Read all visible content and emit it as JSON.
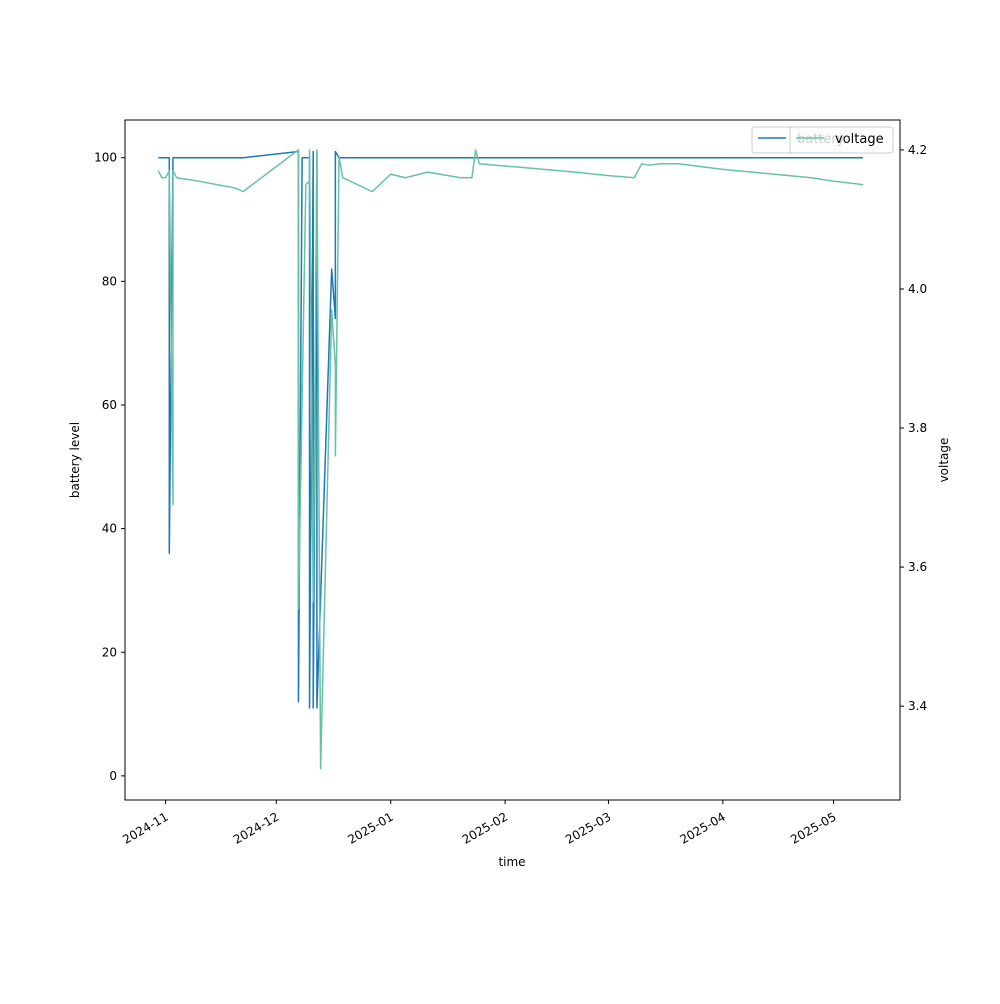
{
  "chart_data": {
    "type": "line",
    "xlabel": "time",
    "ylabel_left": "battery level",
    "ylabel_right": "voltage",
    "x_tick_labels": [
      "2024-11",
      "2024-12",
      "2025-01",
      "2025-02",
      "2025-03",
      "2025-04",
      "2025-05"
    ],
    "x_ticks": [
      "2024-11-01",
      "2024-12-01",
      "2025-01-01",
      "2025-02-01",
      "2025-03-01",
      "2025-04-01",
      "2025-05-01"
    ],
    "xlim": [
      "2024-10-21",
      "2025-05-19"
    ],
    "ylim_left": [
      -3.9,
      106.1
    ],
    "ylim_right": [
      3.265,
      4.243
    ],
    "y_ticks_left": [
      0,
      20,
      40,
      60,
      80,
      100
    ],
    "y_ticks_right": [
      3.4,
      3.6,
      3.8,
      4.0,
      4.2
    ],
    "grid": false,
    "legend_left": {
      "placement": "top-right",
      "entries": [
        "battery"
      ]
    },
    "legend_right": {
      "placement": "top-right",
      "entries": [
        "voltage"
      ]
    },
    "series": [
      {
        "name": "battery",
        "axis": "left",
        "color": "#1f77b4",
        "points": [
          [
            "2024-10-30",
            100
          ],
          [
            "2024-11-02",
            100
          ],
          [
            "2024-11-02",
            36
          ],
          [
            "2024-11-03",
            100
          ],
          [
            "2024-11-22",
            100
          ],
          [
            "2024-12-07",
            101
          ],
          [
            "2024-12-07",
            12
          ],
          [
            "2024-12-08",
            100
          ],
          [
            "2024-12-09",
            100
          ],
          [
            "2024-12-10",
            100
          ],
          [
            "2024-12-10",
            11
          ],
          [
            "2024-12-11",
            101
          ],
          [
            "2024-12-11",
            11
          ],
          [
            "2024-12-12",
            101
          ],
          [
            "2024-12-12",
            11
          ],
          [
            "2024-12-16",
            82
          ],
          [
            "2024-12-17",
            74
          ],
          [
            "2024-12-17",
            101
          ],
          [
            "2024-12-18",
            100
          ],
          [
            "2025-05-09",
            100
          ]
        ]
      },
      {
        "name": "voltage",
        "axis": "right",
        "color": "#66c2a5",
        "points": [
          [
            "2024-10-30",
            4.17
          ],
          [
            "2024-10-31",
            4.16
          ],
          [
            "2024-11-01",
            4.16
          ],
          [
            "2024-11-02",
            4.17
          ],
          [
            "2024-11-03",
            3.69
          ],
          [
            "2024-11-03",
            4.17
          ],
          [
            "2024-11-04",
            4.16
          ],
          [
            "2024-11-10",
            4.155
          ],
          [
            "2024-11-20",
            4.145
          ],
          [
            "2024-11-22",
            4.14
          ],
          [
            "2024-12-07",
            4.2
          ],
          [
            "2024-12-07",
            3.54
          ],
          [
            "2024-12-09",
            4.15
          ],
          [
            "2024-12-10",
            4.155
          ],
          [
            "2024-12-10",
            4.2
          ],
          [
            "2024-12-11",
            3.55
          ],
          [
            "2024-12-12",
            4.2
          ],
          [
            "2024-12-13",
            3.31
          ],
          [
            "2024-12-16",
            3.97
          ],
          [
            "2024-12-17",
            3.89
          ],
          [
            "2024-12-17",
            3.76
          ],
          [
            "2024-12-18",
            4.19
          ],
          [
            "2024-12-19",
            4.16
          ],
          [
            "2024-12-27",
            4.14
          ],
          [
            "2025-01-01",
            4.165
          ],
          [
            "2025-01-05",
            4.16
          ],
          [
            "2025-01-11",
            4.168
          ],
          [
            "2025-01-20",
            4.16
          ],
          [
            "2025-01-23",
            4.16
          ],
          [
            "2025-01-24",
            4.2
          ],
          [
            "2025-01-25",
            4.18
          ],
          [
            "2025-02-05",
            4.175
          ],
          [
            "2025-02-20",
            4.168
          ],
          [
            "2025-03-01",
            4.163
          ],
          [
            "2025-03-08",
            4.16
          ],
          [
            "2025-03-10",
            4.18
          ],
          [
            "2025-03-12",
            4.178
          ],
          [
            "2025-03-15",
            4.18
          ],
          [
            "2025-03-20",
            4.18
          ],
          [
            "2025-04-01",
            4.172
          ],
          [
            "2025-04-15",
            4.165
          ],
          [
            "2025-04-25",
            4.16
          ],
          [
            "2025-05-01",
            4.155
          ],
          [
            "2025-05-09",
            4.15
          ]
        ]
      }
    ]
  }
}
